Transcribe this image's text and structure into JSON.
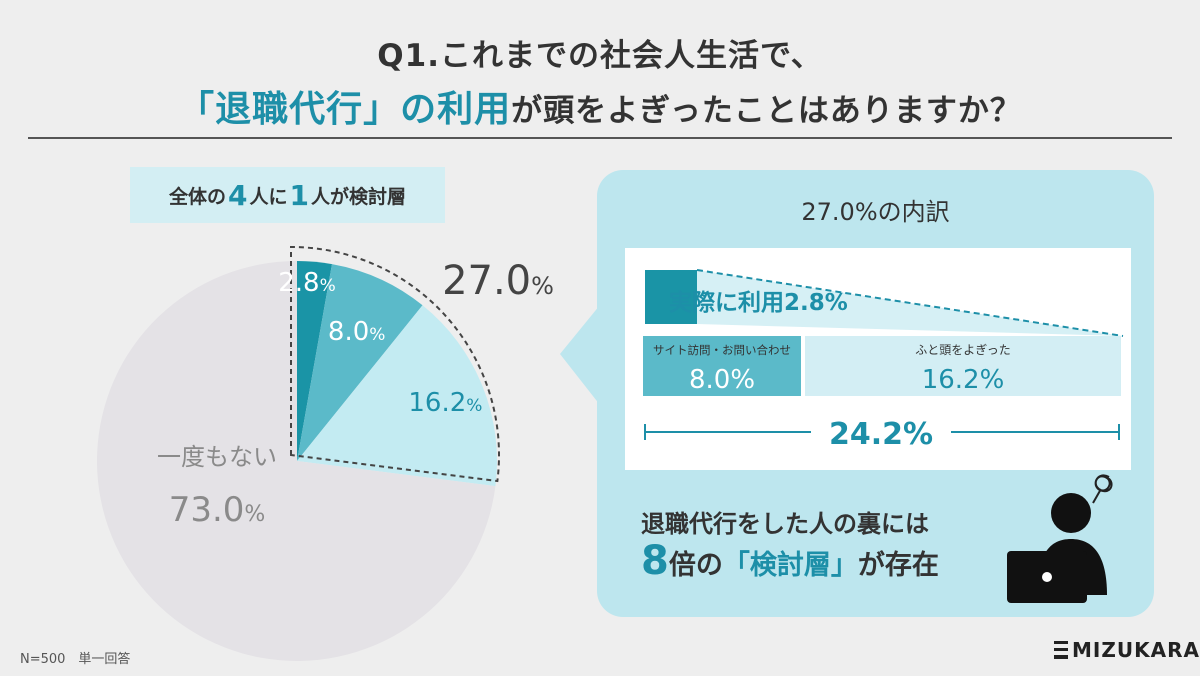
{
  "title": {
    "line1": "Q1.これまでの社会人生活で、",
    "highlight": "「退職代行」の利用",
    "line2_rest": "が頭をよぎったことはありますか？"
  },
  "badge": {
    "pre": "全体の",
    "num1": "4",
    "mid1": "人に",
    "num2": "1",
    "mid2": "人",
    "post": "が検討層"
  },
  "chart_data": {
    "type": "pie",
    "slices": [
      {
        "label": "",
        "value": 2.8,
        "display": "2.8",
        "color": "#1a94a6"
      },
      {
        "label": "",
        "value": 8.0,
        "display": "8.0",
        "color": "#5bbac9"
      },
      {
        "label": "",
        "value": 16.2,
        "display": "16.2",
        "color": "#c3ebf2"
      },
      {
        "label": "一度もない",
        "value": 73.0,
        "display": "73.0",
        "color": "#e4e2e6"
      }
    ],
    "group_total": {
      "display": "27.0",
      "unit": "%"
    },
    "unit": "%"
  },
  "breakdown": {
    "title": "27.0%の内訳",
    "used": {
      "label": "実際に利用",
      "value": "2.8%"
    },
    "visit": {
      "label": "サイト訪問・お問い合わせ",
      "value": "8.0%"
    },
    "thought": {
      "label": "ふと頭をよぎった",
      "value": "16.2%"
    },
    "subtotal": "24.2%"
  },
  "bottom": {
    "line1": "退職代行をした人の裏には",
    "num": "8",
    "mid": "倍の",
    "hl": "「検討層」",
    "post": "が存在"
  },
  "footer": {
    "n": "N=500　単一回答",
    "logo": "MIZUKARA"
  },
  "colors": {
    "accent": "#1d8fa8",
    "dark_teal": "#1a94a6",
    "mid_teal": "#5bbac9",
    "light_teal": "#c3ebf2",
    "grey": "#e4e2e6",
    "callout_bg": "#bde6ee"
  }
}
